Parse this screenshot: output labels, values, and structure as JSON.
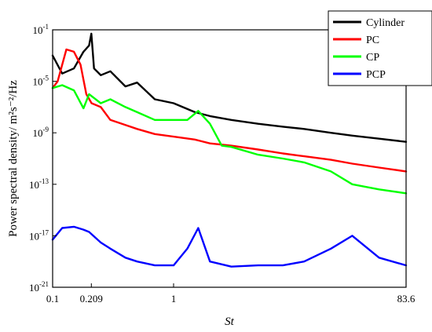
{
  "chart_data": {
    "type": "line",
    "xlabel": "St",
    "ylabel": "Power spectral density/ m²s⁻²/Hz",
    "x_scale": "log",
    "y_scale": "log",
    "xlim": [
      0.1,
      83.6
    ],
    "ylim": [
      1e-21,
      0.1
    ],
    "x_ticks": [
      {
        "value": 0.1,
        "label": "0.1"
      },
      {
        "value": 0.209,
        "label": "0.209"
      },
      {
        "value": 1,
        "label": "1"
      },
      {
        "value": 83.6,
        "label": "83.6"
      }
    ],
    "y_ticks": [
      {
        "value": 0.1,
        "base": "10",
        "exp": "-1"
      },
      {
        "value": 1e-05,
        "base": "10",
        "exp": "-5"
      },
      {
        "value": 1e-09,
        "base": "10",
        "exp": "-9"
      },
      {
        "value": 1e-13,
        "base": "10",
        "exp": "-13"
      },
      {
        "value": 1e-17,
        "base": "10",
        "exp": "-17"
      },
      {
        "value": 1e-21,
        "base": "10",
        "exp": "-21"
      }
    ],
    "legend_position": "top-right",
    "series": [
      {
        "name": "Cylinder",
        "color": "#000000",
        "x": [
          0.1,
          0.12,
          0.15,
          0.18,
          0.2,
          0.209,
          0.22,
          0.25,
          0.3,
          0.4,
          0.5,
          0.7,
          1,
          1.5,
          2,
          3,
          5,
          8,
          12,
          20,
          30,
          50,
          83.6
        ],
        "y": [
          0.001,
          4e-05,
          0.0001,
          0.002,
          0.006,
          0.05,
          0.0001,
          3e-05,
          6e-05,
          4e-06,
          8e-06,
          4e-07,
          2e-07,
          4e-08,
          2e-08,
          1e-08,
          5e-09,
          3e-09,
          2e-09,
          1e-09,
          6e-10,
          3.5e-10,
          2e-10
        ]
      },
      {
        "name": "PC",
        "color": "#ff0000",
        "x": [
          0.1,
          0.11,
          0.13,
          0.15,
          0.17,
          0.19,
          0.21,
          0.25,
          0.3,
          0.4,
          0.5,
          0.7,
          1,
          1.5,
          2,
          3,
          5,
          8,
          12,
          20,
          30,
          50,
          83.6
        ],
        "y": [
          3e-06,
          1e-05,
          0.003,
          0.002,
          0.0002,
          1e-06,
          2e-07,
          1e-07,
          1e-08,
          4e-09,
          2e-09,
          8e-10,
          5e-10,
          3e-10,
          1.5e-10,
          1e-10,
          5e-11,
          2.5e-11,
          1.5e-11,
          8e-12,
          4e-12,
          2e-12,
          1e-12
        ]
      },
      {
        "name": "CP",
        "color": "#00ff00",
        "x": [
          0.1,
          0.12,
          0.15,
          0.18,
          0.2,
          0.25,
          0.3,
          0.4,
          0.5,
          0.7,
          1,
          1.3,
          1.6,
          2,
          2.5,
          3,
          5,
          8,
          12,
          20,
          30,
          50,
          83.6
        ],
        "y": [
          3e-06,
          5e-06,
          2e-06,
          8e-08,
          1e-06,
          2e-07,
          4e-07,
          1e-07,
          4e-08,
          1e-08,
          1e-08,
          1e-08,
          5e-08,
          5e-09,
          1e-10,
          8e-11,
          2e-11,
          1e-11,
          5e-12,
          1e-12,
          1e-13,
          4e-14,
          2e-14
        ]
      },
      {
        "name": "PCP",
        "color": "#0000ff",
        "x": [
          0.1,
          0.12,
          0.15,
          0.18,
          0.2,
          0.25,
          0.3,
          0.4,
          0.5,
          0.7,
          1,
          1.3,
          1.6,
          2,
          3,
          5,
          8,
          12,
          20,
          30,
          50,
          83.6
        ],
        "y": [
          5e-18,
          4e-17,
          5e-17,
          3e-17,
          2e-17,
          3e-18,
          1e-18,
          2e-19,
          1e-19,
          5e-20,
          5e-20,
          1e-18,
          4e-17,
          1e-19,
          4e-20,
          5e-20,
          5e-20,
          1e-19,
          1e-18,
          1e-17,
          2e-19,
          5e-20
        ]
      }
    ]
  }
}
